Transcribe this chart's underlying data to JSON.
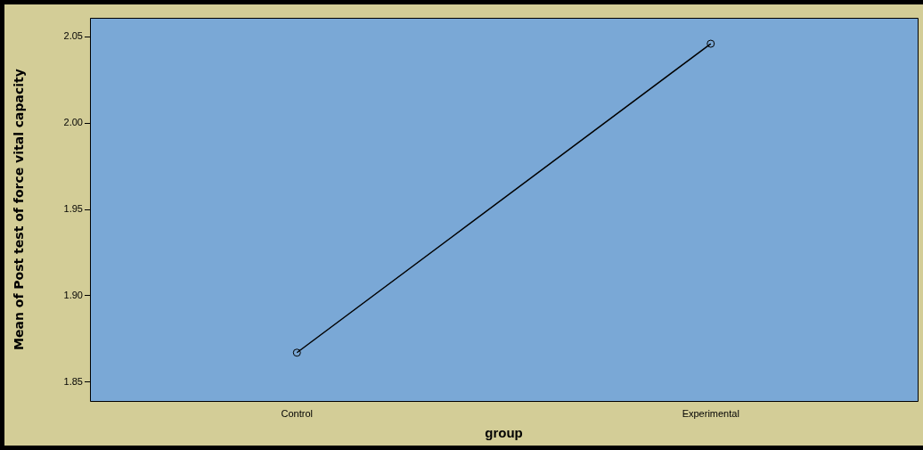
{
  "chart_data": {
    "type": "line",
    "xlabel": "group",
    "ylabel": "Mean of Post test of force vital capacity",
    "categories": [
      "Control",
      "Experimental"
    ],
    "series": [
      {
        "color": "#000000",
        "values": [
          1.867,
          2.046
        ]
      }
    ],
    "ylim": [
      1.839,
      2.061
    ],
    "yticks": [
      {
        "value": 1.85,
        "label": "1.85"
      },
      {
        "value": 1.9,
        "label": "1.90"
      },
      {
        "value": 1.95,
        "label": "1.95"
      },
      {
        "value": 2.0,
        "label": "2.00"
      },
      {
        "value": 2.05,
        "label": "2.05"
      }
    ],
    "grid": false,
    "legend": false,
    "marker": "circle",
    "line_style": "solid"
  }
}
